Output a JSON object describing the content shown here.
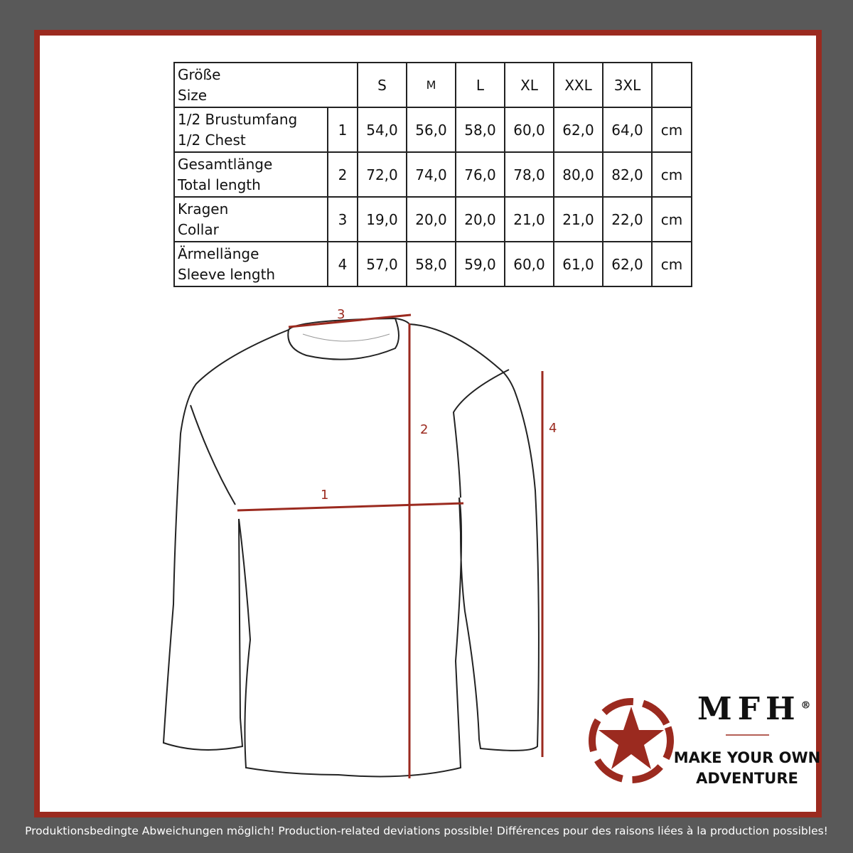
{
  "table": {
    "header_label": [
      "Größe",
      "Size"
    ],
    "sizes": [
      "S",
      "M",
      "L",
      "XL",
      "XXL",
      "3XL"
    ],
    "rows": [
      {
        "label": [
          "1/2 Brustumfang",
          "1/2 Chest"
        ],
        "num": "1",
        "values": [
          "54,0",
          "56,0",
          "58,0",
          "60,0",
          "62,0",
          "64,0"
        ],
        "unit": "cm"
      },
      {
        "label": [
          "Gesamtlänge",
          "Total length"
        ],
        "num": "2",
        "values": [
          "72,0",
          "74,0",
          "76,0",
          "78,0",
          "80,0",
          "82,0"
        ],
        "unit": "cm"
      },
      {
        "label": [
          "Kragen",
          "Collar"
        ],
        "num": "3",
        "values": [
          "19,0",
          "20,0",
          "20,0",
          "21,0",
          "21,0",
          "22,0"
        ],
        "unit": "cm"
      },
      {
        "label": [
          "Ärmellänge",
          "Sleeve length"
        ],
        "num": "4",
        "values": [
          "57,0",
          "58,0",
          "59,0",
          "60,0",
          "61,0",
          "62,0"
        ],
        "unit": "cm"
      }
    ]
  },
  "diagram": {
    "labels": [
      "1",
      "2",
      "3",
      "4"
    ],
    "accent": "#9b2a1f"
  },
  "logo": {
    "brand": "MFH",
    "registered": "®",
    "slogan": [
      "MAKE YOUR OWN",
      "ADVENTURE"
    ],
    "icon": "star-in-circle-icon"
  },
  "footer": "Produktionsbedingte Abweichungen möglich! Production-related deviations possible! Différences pour des raisons liées à la production possibles!"
}
